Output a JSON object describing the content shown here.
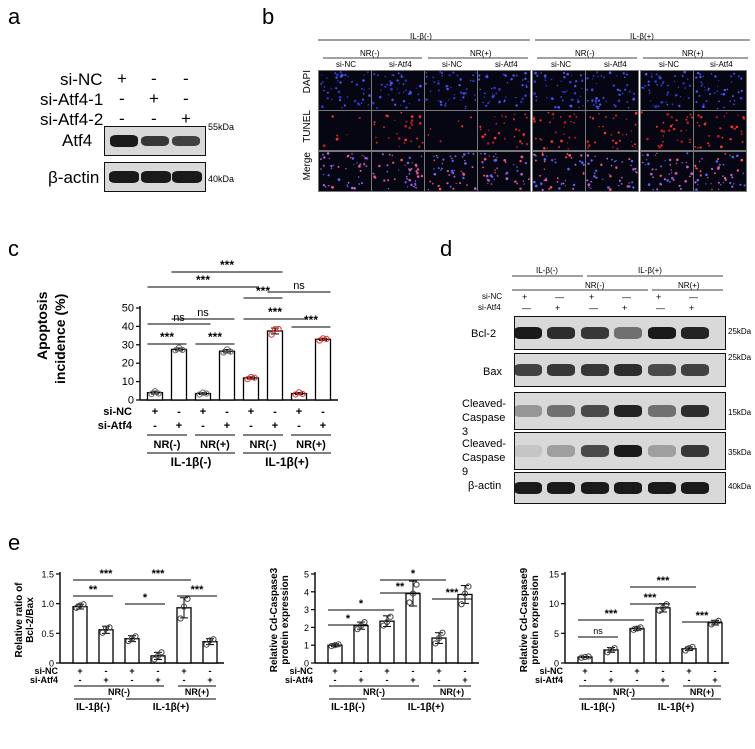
{
  "panel_letters": [
    "a",
    "b",
    "c",
    "d",
    "e"
  ],
  "panel_a": {
    "row_labels": [
      "si-NC",
      "si-Atf4-1",
      "si-Atf4-2"
    ],
    "row_signs": [
      [
        "+",
        "-",
        "-"
      ],
      [
        "-",
        "+",
        "-"
      ],
      [
        "-",
        "-",
        "+"
      ]
    ],
    "blots": [
      {
        "label": "Atf4",
        "marker": "55kDa"
      },
      {
        "label": "β-actin",
        "marker": "40kDa"
      }
    ]
  },
  "panel_b": {
    "top_groups": [
      "IL-β(-)",
      "IL-β(+)"
    ],
    "sub_groups": [
      "NR(-)",
      "NR(+)",
      "NR(-)",
      "NR(+)"
    ],
    "columns": [
      "si-NC",
      "si-Atf4",
      "si-NC",
      "si-Atf4",
      "si-NC",
      "si-Atf4",
      "si-NC",
      "si-Atf4"
    ],
    "rows": [
      "DAPI",
      "TUNEL",
      "Merge"
    ]
  },
  "panel_c": {
    "ylabel_line1": "Apoptosis",
    "ylabel_line2": "incidence (%)",
    "ytick_labels": [
      "0",
      "10",
      "20",
      "30",
      "40",
      "50"
    ],
    "sign_rows": [
      {
        "label": "si-NC",
        "signs": [
          "+",
          "-",
          "+",
          "-",
          "+",
          "-",
          "+",
          "-"
        ]
      },
      {
        "label": "si-Atf4",
        "signs": [
          "-",
          "+",
          "-",
          "+",
          "-",
          "+",
          "-",
          "+"
        ]
      }
    ],
    "nr_labels": [
      "NR(-)",
      "NR(+)",
      "NR(-)",
      "NR(+)"
    ],
    "il_labels": [
      "IL-1β(-)",
      "IL-1β(+)"
    ],
    "significance": [
      "***",
      "***",
      "***",
      "***",
      "***",
      "***",
      "ns",
      "ns",
      "ns"
    ]
  },
  "panel_d": {
    "top_groups": [
      "IL-β(-)",
      "IL-β(+)"
    ],
    "nr_labels": [
      "NR(-)",
      "NR(+)"
    ],
    "row_labels": [
      "si-NC",
      "si-Atf4"
    ],
    "row_signs": [
      [
        "+",
        "-",
        "+",
        "-",
        "+",
        "-"
      ],
      [
        "-",
        "+",
        "-",
        "+",
        "-",
        "+"
      ]
    ],
    "blots": [
      {
        "label": "Bcl-2",
        "marker": "25kDa"
      },
      {
        "label": "Bax",
        "marker": "25kDa"
      },
      {
        "label": "Cleaved-Caspase 3",
        "marker": "15kDa"
      },
      {
        "label": "Cleaved-Caspase 9",
        "marker": "35kDa"
      },
      {
        "label": "β-actin",
        "marker": "40kDa"
      }
    ]
  },
  "panel_e": {
    "sign_rows": [
      {
        "label": "si-NC",
        "signs": [
          "+",
          "-",
          "+",
          "-",
          "+",
          "-"
        ]
      },
      {
        "label": "si-Atf4",
        "signs": [
          "-",
          "+",
          "-",
          "+",
          "-",
          "+"
        ]
      }
    ],
    "nr_labels": [
      "NR(-)",
      "NR(+)"
    ],
    "il_labels": [
      "IL-1β(-)",
      "IL-1β(+)"
    ]
  },
  "chart_data": [
    {
      "type": "bar",
      "panel": "c",
      "categories": [
        "1",
        "2",
        "3",
        "4",
        "5",
        "6",
        "7",
        "8"
      ],
      "values": [
        4,
        27.5,
        3.5,
        26.5,
        12,
        37.5,
        3.5,
        33
      ],
      "points": [
        [
          3.2,
          4.8,
          3.5
        ],
        [
          27,
          28.5,
          27.2
        ],
        [
          3,
          4,
          3.5
        ],
        [
          25.8,
          27.5,
          26.3
        ],
        [
          11.3,
          12.5,
          12.1
        ],
        [
          35.5,
          38.5,
          38.6
        ],
        [
          3,
          4.2,
          3.3
        ],
        [
          32.3,
          33.5,
          33.2
        ]
      ],
      "errors": [
        0.8,
        0.8,
        0.5,
        0.9,
        0.6,
        1.6,
        0.6,
        0.6
      ],
      "point_colors": [
        "#666666",
        "#666666",
        "#666666",
        "#666666",
        "#e0352f",
        "#e0352f",
        "#e0352f",
        "#e0352f"
      ],
      "ylabel": "Apoptosis incidence (%)",
      "ylim": [
        0,
        50
      ],
      "yticks": [
        0,
        10,
        20,
        30,
        40,
        50
      ],
      "brackets": [
        {
          "from": 0,
          "to": 1,
          "text": "***"
        },
        {
          "from": 2,
          "to": 3,
          "text": "***"
        },
        {
          "from": 4,
          "to": 5,
          "text": "***"
        },
        {
          "from": 6,
          "to": 7,
          "text": "***"
        },
        {
          "from": 0,
          "to": 2,
          "text": "ns"
        },
        {
          "from": 1,
          "to": 3,
          "text": "ns"
        },
        {
          "from": 4,
          "to": 6,
          "text": "***"
        },
        {
          "from": 5,
          "to": 7,
          "text": "ns"
        },
        {
          "from": 0,
          "to": 4,
          "text": "***"
        },
        {
          "from": 1,
          "to": 5,
          "text": "***"
        }
      ]
    },
    {
      "type": "bar",
      "panel": "e-1",
      "categories": [
        "1",
        "2",
        "3",
        "4",
        "5",
        "6"
      ],
      "values": [
        0.95,
        0.56,
        0.41,
        0.12,
        0.93,
        0.36
      ],
      "points": [
        [
          0.93,
          0.97,
          0.99
        ],
        [
          0.51,
          0.58,
          0.6
        ],
        [
          0.37,
          0.41,
          0.45
        ],
        [
          0.06,
          0.12,
          0.18
        ],
        [
          0.75,
          0.95,
          1.08
        ],
        [
          0.31,
          0.38,
          0.4
        ]
      ],
      "errors": [
        0.04,
        0.06,
        0.05,
        0.06,
        0.17,
        0.05
      ],
      "ylabel": "Relative ratio of Bcl-2/Bax",
      "ylim": [
        0,
        1.5
      ],
      "yticks": [
        0,
        0.5,
        1.0,
        1.5
      ],
      "brackets": [
        {
          "from": 0,
          "to": 1,
          "text": "**"
        },
        {
          "from": 2,
          "to": 3,
          "text": "*"
        },
        {
          "from": 4,
          "to": 5,
          "text": "***"
        },
        {
          "from": 0,
          "to": 2,
          "text": "***"
        },
        {
          "from": 2,
          "to": 4,
          "text": "***"
        }
      ]
    },
    {
      "type": "bar",
      "panel": "e-2",
      "categories": [
        "1",
        "2",
        "3",
        "4",
        "5",
        "6"
      ],
      "values": [
        1,
        2.1,
        2.35,
        3.9,
        1.4,
        3.85
      ],
      "points": [
        [
          0.95,
          1.0,
          1.05
        ],
        [
          1.9,
          2.1,
          2.3
        ],
        [
          2.1,
          2.3,
          2.6
        ],
        [
          3.4,
          3.9,
          4.4
        ],
        [
          1.1,
          1.4,
          1.7
        ],
        [
          3.3,
          3.9,
          4.3
        ]
      ],
      "errors": [
        0.08,
        0.2,
        0.3,
        0.7,
        0.3,
        0.5
      ],
      "ylabel": "Relative Cd-Caspase3 protein expression",
      "ylim": [
        0,
        5
      ],
      "yticks": [
        0,
        1,
        2,
        3,
        4,
        5
      ],
      "brackets": [
        {
          "from": 0,
          "to": 1,
          "text": "*"
        },
        {
          "from": 2,
          "to": 3,
          "text": "**"
        },
        {
          "from": 4,
          "to": 5,
          "text": "***"
        },
        {
          "from": 0,
          "to": 2,
          "text": "*"
        },
        {
          "from": 2,
          "to": 4,
          "text": "*"
        }
      ]
    },
    {
      "type": "bar",
      "panel": "e-3",
      "categories": [
        "1",
        "2",
        "3",
        "4",
        "5",
        "6"
      ],
      "values": [
        1,
        2.2,
        5.8,
        9.3,
        2.4,
        6.8
      ],
      "points": [
        [
          0.9,
          1.0,
          1.1
        ],
        [
          1.8,
          2.2,
          2.5
        ],
        [
          5.6,
          5.8,
          6.0
        ],
        [
          8.8,
          9.3,
          9.9
        ],
        [
          2.1,
          2.5,
          2.7
        ],
        [
          6.5,
          6.8,
          7.1
        ]
      ],
      "errors": [
        0.1,
        0.4,
        0.3,
        0.7,
        0.3,
        0.4
      ],
      "ylabel": "Relative Cd-Caspase9 protein expression",
      "ylim": [
        0,
        15
      ],
      "yticks": [
        0,
        5,
        10,
        15
      ],
      "brackets": [
        {
          "from": 0,
          "to": 1,
          "text": "ns"
        },
        {
          "from": 2,
          "to": 3,
          "text": "***"
        },
        {
          "from": 4,
          "to": 5,
          "text": "***"
        },
        {
          "from": 0,
          "to": 2,
          "text": "***"
        },
        {
          "from": 2,
          "to": 4,
          "text": "***"
        }
      ]
    }
  ]
}
